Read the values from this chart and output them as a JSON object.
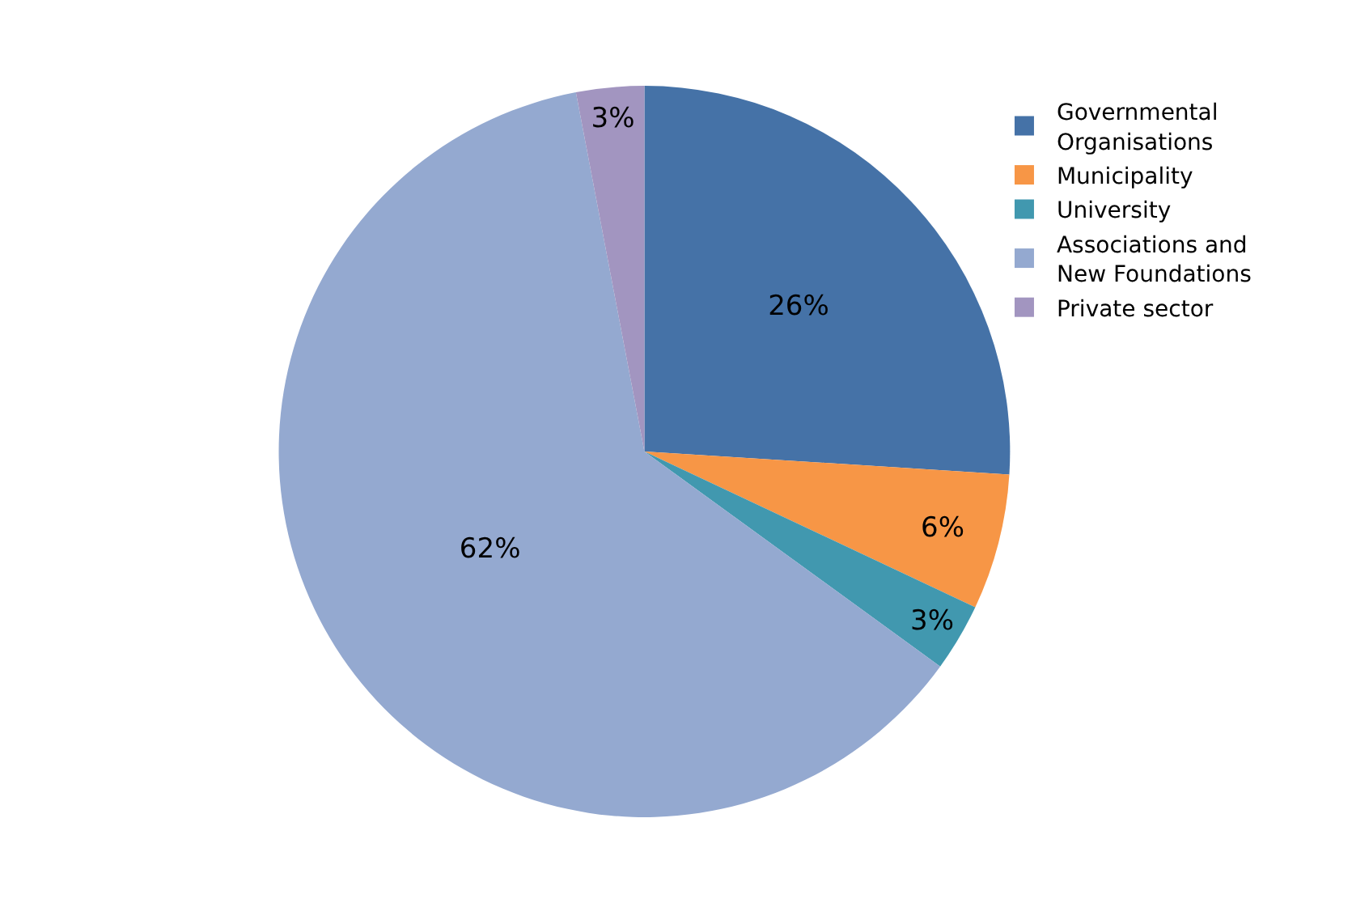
{
  "chart_data": {
    "type": "pie",
    "categories": [
      "Governmental Organisations",
      "Municipality",
      "University",
      "Associations and New Foundations",
      "Private sector"
    ],
    "values": [
      26,
      6,
      3,
      62,
      3
    ],
    "value_labels": [
      "26%",
      "6%",
      "3%",
      "62%",
      "3%"
    ],
    "colors": [
      "#4572a7",
      "#f79646",
      "#4198af",
      "#94a9d0",
      "#a295c0"
    ],
    "legend": "right"
  }
}
